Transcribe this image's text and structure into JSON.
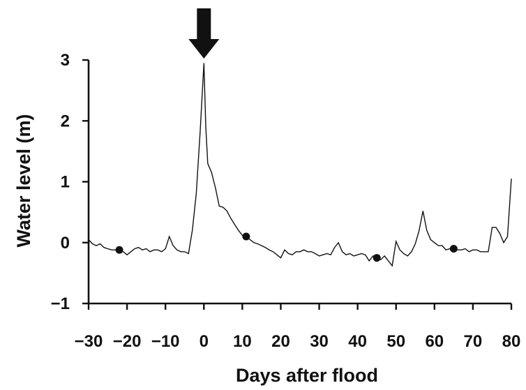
{
  "chart_data": {
    "type": "line",
    "title": "",
    "xlabel": "Days after flood",
    "ylabel": "Water level (m)",
    "xlim": [
      -30,
      80
    ],
    "ylim": [
      -1,
      3
    ],
    "xticks": [
      -30,
      -20,
      -10,
      0,
      10,
      20,
      30,
      40,
      50,
      60,
      70,
      80
    ],
    "xtick_labels": [
      "−30",
      "−20",
      "−10",
      "0",
      "10",
      "20",
      "30",
      "40",
      "50",
      "60",
      "70",
      "80"
    ],
    "yticks": [
      -1,
      0,
      1,
      2,
      3
    ],
    "ytick_labels": [
      "−1",
      "0",
      "1",
      "2",
      "3"
    ],
    "grid": false,
    "legend": "none",
    "series": [
      {
        "x": [
          -30,
          -29,
          -28,
          -27,
          -26,
          -25,
          -24,
          -23,
          -22,
          -21,
          -20,
          -19,
          -18,
          -17,
          -16,
          -15,
          -14,
          -13,
          -12,
          -11,
          -10,
          -9,
          -8,
          -7,
          -6,
          -5,
          -4,
          -3,
          -2,
          -1,
          0,
          0.5,
          1,
          2,
          3,
          4,
          5,
          6,
          7,
          8,
          9,
          10,
          11,
          12,
          13,
          14,
          15,
          16,
          17,
          18,
          19,
          20,
          21,
          22,
          23,
          24,
          25,
          26,
          27,
          28,
          29,
          30,
          31,
          32,
          33,
          34,
          35,
          36,
          37,
          38,
          39,
          40,
          41,
          42,
          43,
          44,
          45,
          46,
          47,
          48,
          49,
          50,
          51,
          52,
          53,
          54,
          55,
          56,
          57,
          58,
          59,
          60,
          61,
          62,
          63,
          64,
          65,
          66,
          67,
          68,
          69,
          70,
          71,
          72,
          73,
          74,
          75,
          76,
          77,
          78,
          79,
          80
        ],
        "y": [
          0.05,
          -0.02,
          -0.05,
          -0.02,
          -0.08,
          -0.1,
          -0.12,
          -0.12,
          -0.14,
          -0.15,
          -0.2,
          -0.15,
          -0.1,
          -0.08,
          -0.12,
          -0.1,
          -0.15,
          -0.12,
          -0.12,
          -0.15,
          -0.1,
          0.1,
          -0.05,
          -0.12,
          -0.15,
          -0.15,
          -0.18,
          0.2,
          0.8,
          1.8,
          2.95,
          1.9,
          1.3,
          1.15,
          0.9,
          0.6,
          0.58,
          0.52,
          0.4,
          0.3,
          0.2,
          0.12,
          0.1,
          0.05,
          0.0,
          -0.02,
          -0.05,
          -0.08,
          -0.12,
          -0.15,
          -0.2,
          -0.25,
          -0.12,
          -0.18,
          -0.2,
          -0.15,
          -0.15,
          -0.12,
          -0.15,
          -0.15,
          -0.18,
          -0.22,
          -0.2,
          -0.18,
          -0.2,
          -0.08,
          0.0,
          -0.15,
          -0.2,
          -0.18,
          -0.22,
          -0.2,
          -0.18,
          -0.2,
          -0.3,
          -0.22,
          -0.25,
          -0.28,
          -0.22,
          -0.3,
          -0.38,
          0.02,
          -0.12,
          -0.18,
          -0.22,
          -0.15,
          -0.02,
          0.2,
          0.52,
          0.2,
          0.05,
          0.0,
          -0.05,
          -0.05,
          -0.12,
          -0.1,
          -0.1,
          -0.12,
          -0.12,
          -0.1,
          -0.15,
          -0.12,
          -0.12,
          -0.15,
          -0.15,
          -0.15,
          0.25,
          0.25,
          0.15,
          0.0,
          0.1,
          1.05
        ]
      }
    ],
    "markers": {
      "x": [
        -22,
        11,
        45,
        65
      ],
      "y": [
        -0.12,
        0.1,
        -0.25,
        -0.1
      ]
    },
    "annotation": {
      "type": "arrow",
      "x": 0,
      "direction": "down"
    }
  }
}
